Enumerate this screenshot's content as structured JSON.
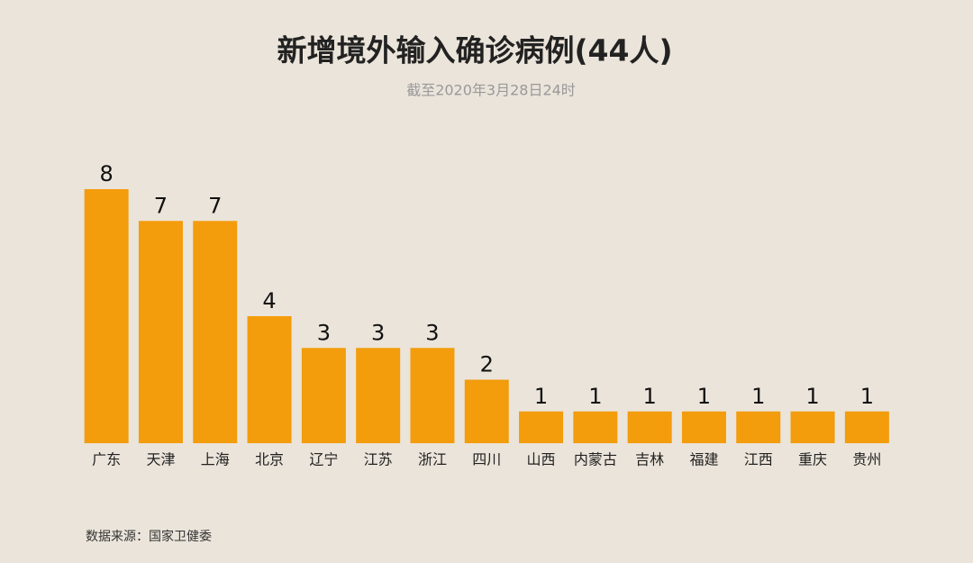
{
  "chart_data": {
    "type": "bar",
    "title": "新增境外输入确诊病例(44人)",
    "subtitle": "截至2020年3月28日24时",
    "source": "数据来源：国家卫健委",
    "categories": [
      "广东",
      "天津",
      "上海",
      "北京",
      "辽宁",
      "江苏",
      "浙江",
      "四川",
      "山西",
      "内蒙古",
      "吉林",
      "福建",
      "江西",
      "重庆",
      "贵州"
    ],
    "values": [
      8,
      7,
      7,
      4,
      3,
      3,
      3,
      2,
      1,
      1,
      1,
      1,
      1,
      1,
      1
    ],
    "color": "#f39c0c"
  }
}
